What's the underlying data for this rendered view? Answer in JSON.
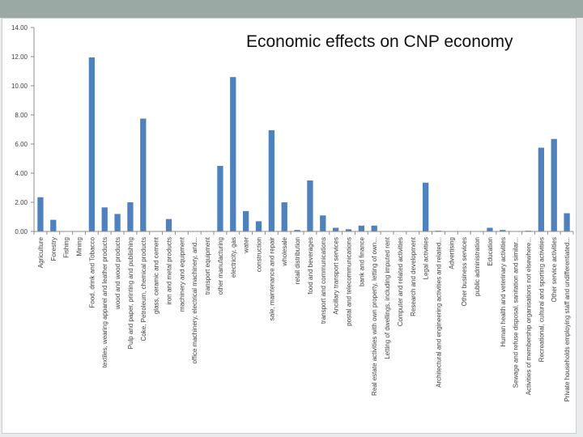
{
  "colors": {
    "bar": "#4f81bd",
    "grid": "#d9d9d9",
    "axis": "#8c8c8c",
    "text": "#404040"
  },
  "chart_data": {
    "type": "bar",
    "title": "Economic effects on CNP economy",
    "xlabel": "",
    "ylabel": "",
    "ylim": [
      0,
      14
    ],
    "yticks": [
      "0.00",
      "2.00",
      "4.00",
      "6.00",
      "8.00",
      "10.00",
      "12.00",
      "14.00"
    ],
    "grid": false,
    "categories": [
      "Agriculture",
      "Forestry",
      "Fishing",
      "Mining",
      "Food, drink and Tobacco",
      "textiles, wearing apparel and leather products",
      "wood and wood products",
      "Pulp and paper, printing and publishing",
      "Coke, Petroleum, chemical products",
      "glass, ceramic and cement",
      "iron and metal products",
      "machinery and equipment",
      "office machinery, electrical machinery, and...",
      "transport equipment",
      "other manufacturing",
      "electricity, gas",
      "water",
      "construction",
      "sale, maintenance and repair",
      "wholesale",
      "retail distribution",
      "food and beverages",
      "transport and communications",
      "Ancillary transport services",
      "postal and telecommunications",
      "bank and finance",
      "Real estate activities with own property, letting of own...",
      "Letting of dwellings, including imputed rent",
      "Computer and related activities",
      "Research and development",
      "Legal activities",
      "Architectural and engineering activities and related...",
      "Advertising",
      "Other business services",
      "public administration",
      "Education",
      "Human health and veterinary activities",
      "Sewage and refuse disposal, sanitation and similar...",
      "Activities of membership organisations not elsewhere...",
      "Recreational, cultural and sporting activities",
      "Other service activities",
      "Private households employing staff and undifferentiated..."
    ],
    "values": [
      2.35,
      0.8,
      0,
      0,
      11.95,
      1.65,
      1.2,
      2.0,
      7.75,
      0,
      0.85,
      0,
      0,
      0,
      4.5,
      10.6,
      1.4,
      0.7,
      6.95,
      2.0,
      0.1,
      3.5,
      1.1,
      0.25,
      0.15,
      0.4,
      0.4,
      0,
      0,
      0,
      3.35,
      0.05,
      0,
      0,
      0,
      0.25,
      0.1,
      0,
      0.05,
      5.75,
      6.35,
      1.25
    ]
  }
}
